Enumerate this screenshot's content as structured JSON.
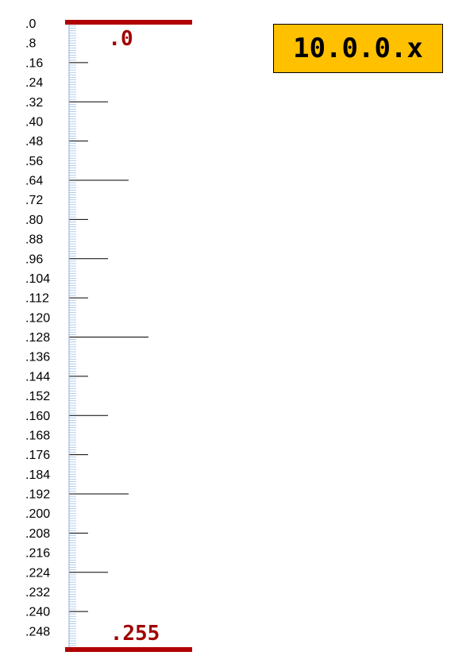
{
  "subnet_badge": "10.0.0.x",
  "range": {
    "start_label": ".0",
    "end_label": ".255",
    "start": 0,
    "end": 255
  },
  "ruler": {
    "label_step": 8,
    "tick_labels": [
      ".0",
      ".8",
      ".16",
      ".24",
      ".32",
      ".40",
      ".48",
      ".56",
      ".64",
      ".72",
      ".80",
      ".88",
      ".96",
      ".104",
      ".112",
      ".120",
      ".128",
      ".136",
      ".144",
      ".152",
      ".160",
      ".168",
      ".176",
      ".184",
      ".192",
      ".200",
      ".208",
      ".216",
      ".224",
      ".232",
      ".240",
      ".248"
    ]
  },
  "colors": {
    "bar": "#b00000",
    "label_red": "#a00000",
    "minor_tick": "#9dc3e6",
    "badge_fill": "#ffc000"
  }
}
